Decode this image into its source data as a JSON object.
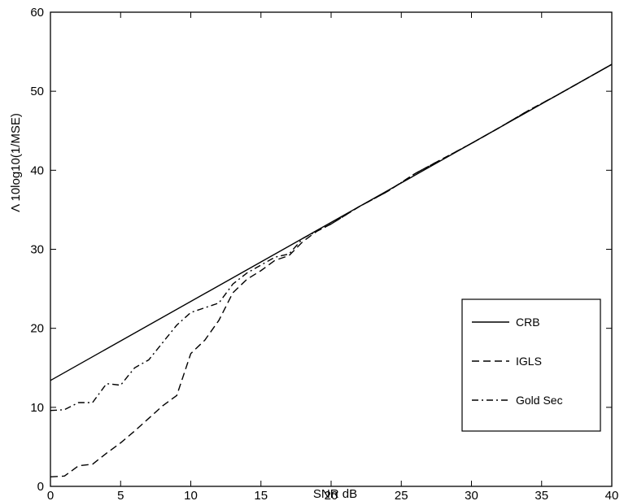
{
  "chart_data": {
    "type": "line",
    "title": "",
    "xlabel": "SNR dB",
    "ylabel": "Λ  10log10(1/MSE)",
    "xlim": [
      0,
      40
    ],
    "ylim": [
      0,
      60
    ],
    "xticks": [
      0,
      5,
      10,
      15,
      20,
      25,
      30,
      35,
      40
    ],
    "yticks": [
      0,
      10,
      20,
      30,
      40,
      50,
      60
    ],
    "grid": false,
    "legend_position": "lower-right",
    "series": [
      {
        "name": "CRB",
        "style": "solid",
        "x": [
          0,
          40
        ],
        "y": [
          13.4,
          53.4
        ]
      },
      {
        "name": "IGLS",
        "style": "dashed",
        "x": [
          0,
          1,
          2,
          3,
          4,
          5,
          6,
          7,
          8,
          9,
          10,
          11,
          12,
          13,
          14,
          15,
          16,
          17,
          18,
          19,
          20,
          22,
          24,
          26,
          28,
          30,
          32,
          34,
          36,
          38,
          40
        ],
        "y": [
          1.2,
          1.3,
          2.6,
          2.8,
          4.2,
          5.5,
          7.0,
          8.6,
          10.2,
          11.5,
          16.8,
          18.5,
          21.0,
          24.5,
          26.2,
          27.3,
          28.6,
          29.2,
          31.0,
          32.3,
          33.2,
          35.4,
          37.3,
          39.6,
          41.5,
          43.4,
          45.4,
          47.5,
          49.4,
          51.4,
          53.4
        ]
      },
      {
        "name": "Gold Sec",
        "style": "dashdot",
        "x": [
          0,
          1,
          2,
          3,
          4,
          5,
          6,
          7,
          8,
          9,
          10,
          11,
          12,
          13,
          14,
          15,
          16,
          17,
          18,
          19,
          20,
          22,
          24,
          26,
          28,
          30,
          32,
          34,
          36,
          38,
          40
        ],
        "y": [
          9.6,
          9.7,
          10.6,
          10.6,
          13.0,
          12.8,
          15.0,
          16.0,
          18.2,
          20.4,
          22.0,
          22.6,
          23.2,
          25.6,
          27.0,
          28.0,
          29.0,
          29.4,
          31.4,
          32.3,
          33.2,
          35.4,
          37.3,
          39.6,
          41.5,
          43.4,
          45.4,
          47.5,
          49.4,
          51.4,
          53.4
        ]
      }
    ]
  }
}
